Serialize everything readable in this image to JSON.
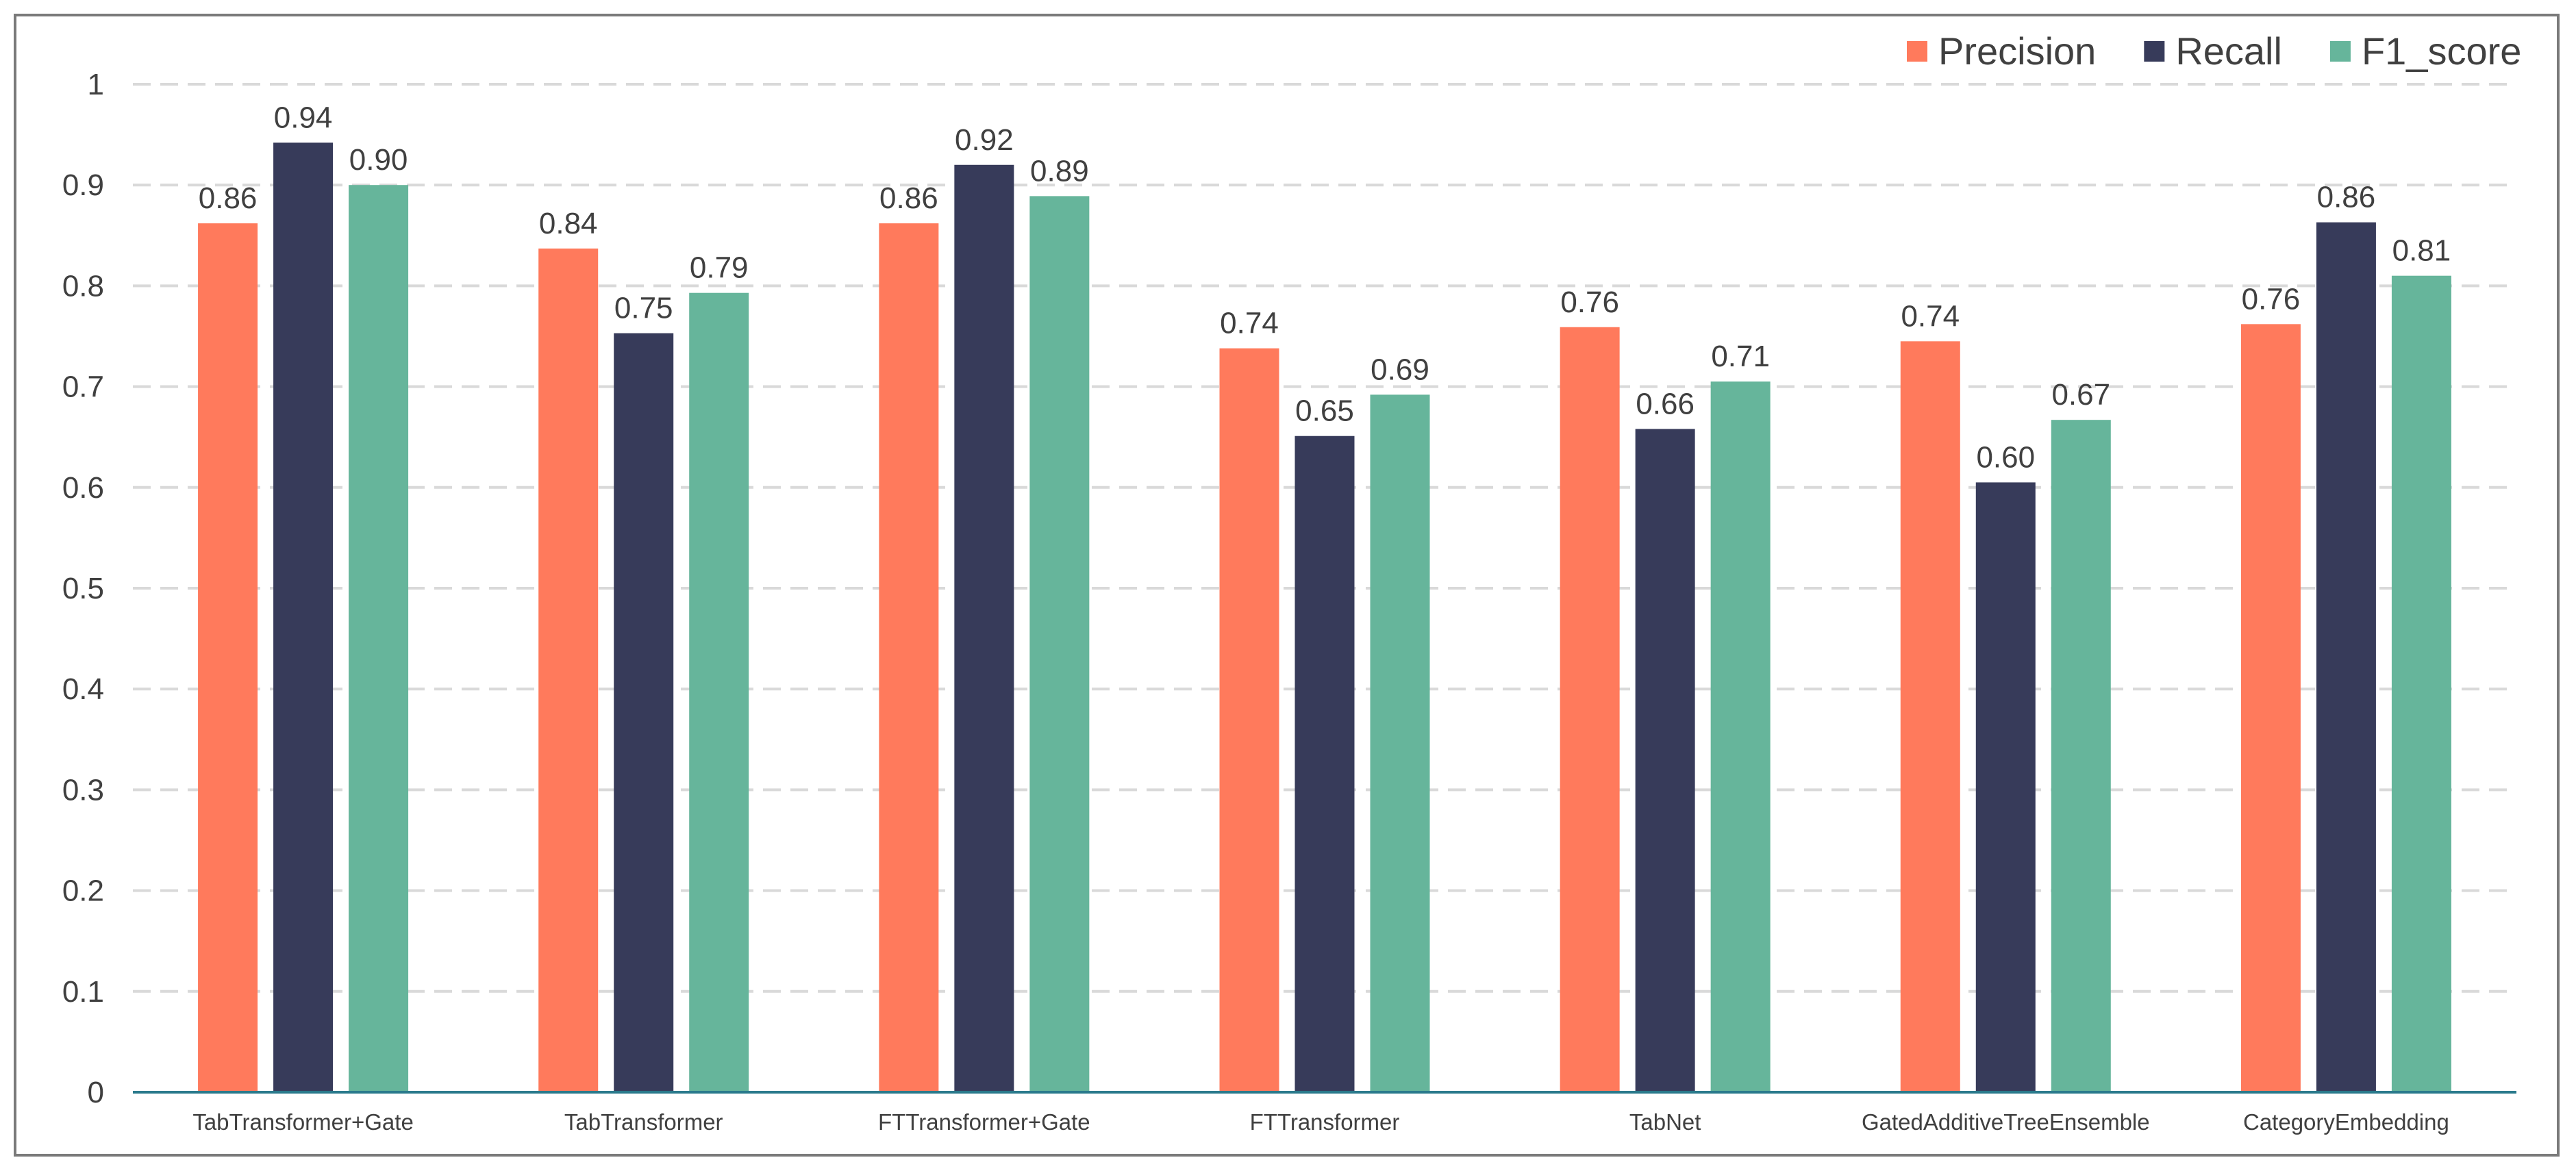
{
  "chart_data": {
    "type": "bar",
    "title": "",
    "xlabel": "",
    "ylabel": "",
    "ylim": [
      0,
      1
    ],
    "yticks": [
      "0",
      "0.1",
      "0.2",
      "0.3",
      "0.4",
      "0.5",
      "0.6",
      "0.7",
      "0.8",
      "0.9",
      "1"
    ],
    "grid": true,
    "legend_position": "top-right",
    "categories": [
      "TabTransformer+Gate",
      "TabTransformer",
      "FTTransformer+Gate",
      "FTTransformer",
      "TabNet",
      "GatedAdditiveTreeEnsemble",
      "CategoryEmbedding"
    ],
    "series": [
      {
        "name": "Precision",
        "color": "#ff7a5c",
        "values": [
          0.862,
          0.837,
          0.862,
          0.738,
          0.759,
          0.745,
          0.762
        ],
        "labels": [
          "0.86",
          "0.84",
          "0.86",
          "0.74",
          "0.76",
          "0.74",
          "0.76"
        ]
      },
      {
        "name": "Recall",
        "color": "#373b5a",
        "values": [
          0.942,
          0.753,
          0.92,
          0.651,
          0.658,
          0.605,
          0.863
        ],
        "labels": [
          "0.94",
          "0.75",
          "0.92",
          "0.65",
          "0.66",
          "0.60",
          "0.86"
        ]
      },
      {
        "name": "F1_score",
        "color": "#66b59b",
        "values": [
          0.9,
          0.793,
          0.889,
          0.692,
          0.705,
          0.667,
          0.81
        ],
        "labels": [
          "0.90",
          "0.79",
          "0.89",
          "0.69",
          "0.71",
          "0.67",
          "0.81"
        ]
      }
    ],
    "axis_color": "#2a7a8c",
    "gridline_color": "#d9d9d9"
  }
}
